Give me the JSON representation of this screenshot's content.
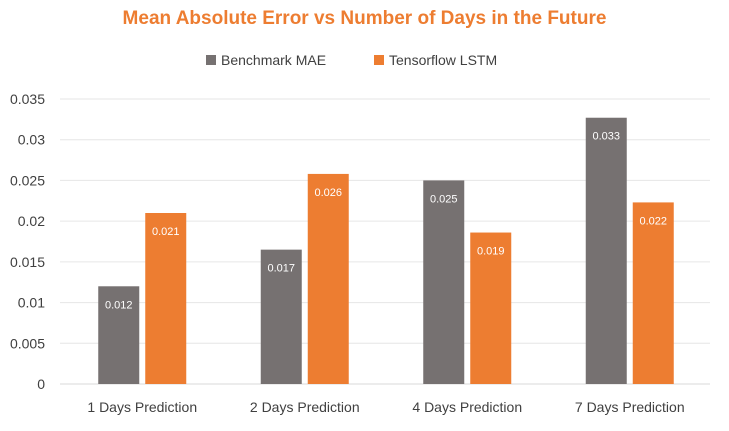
{
  "chart_data": {
    "type": "bar",
    "title": "Mean Absolute Error vs Number of Days in the Future",
    "categories": [
      "1 Days Prediction",
      "2 Days Prediction",
      "4 Days Prediction",
      "7 Days Prediction"
    ],
    "series": [
      {
        "name": "Benchmark MAE",
        "values": [
          0.012,
          0.0165,
          0.025,
          0.0327
        ],
        "labels": [
          "0.012",
          "0.017",
          "0.025",
          "0.033"
        ],
        "color": "#767171"
      },
      {
        "name": "Tensorflow LSTM",
        "values": [
          0.021,
          0.0258,
          0.0186,
          0.0223
        ],
        "labels": [
          "0.021",
          "0.026",
          "0.019",
          "0.022"
        ],
        "color": "#ED7D31"
      }
    ],
    "ylim": [
      0,
      0.035
    ],
    "yticks": [
      "0",
      "0.005",
      "0.01",
      "0.015",
      "0.02",
      "0.025",
      "0.03",
      "0.035"
    ],
    "grid": true,
    "legend": "top-center",
    "title_color": "#ED7D31"
  }
}
